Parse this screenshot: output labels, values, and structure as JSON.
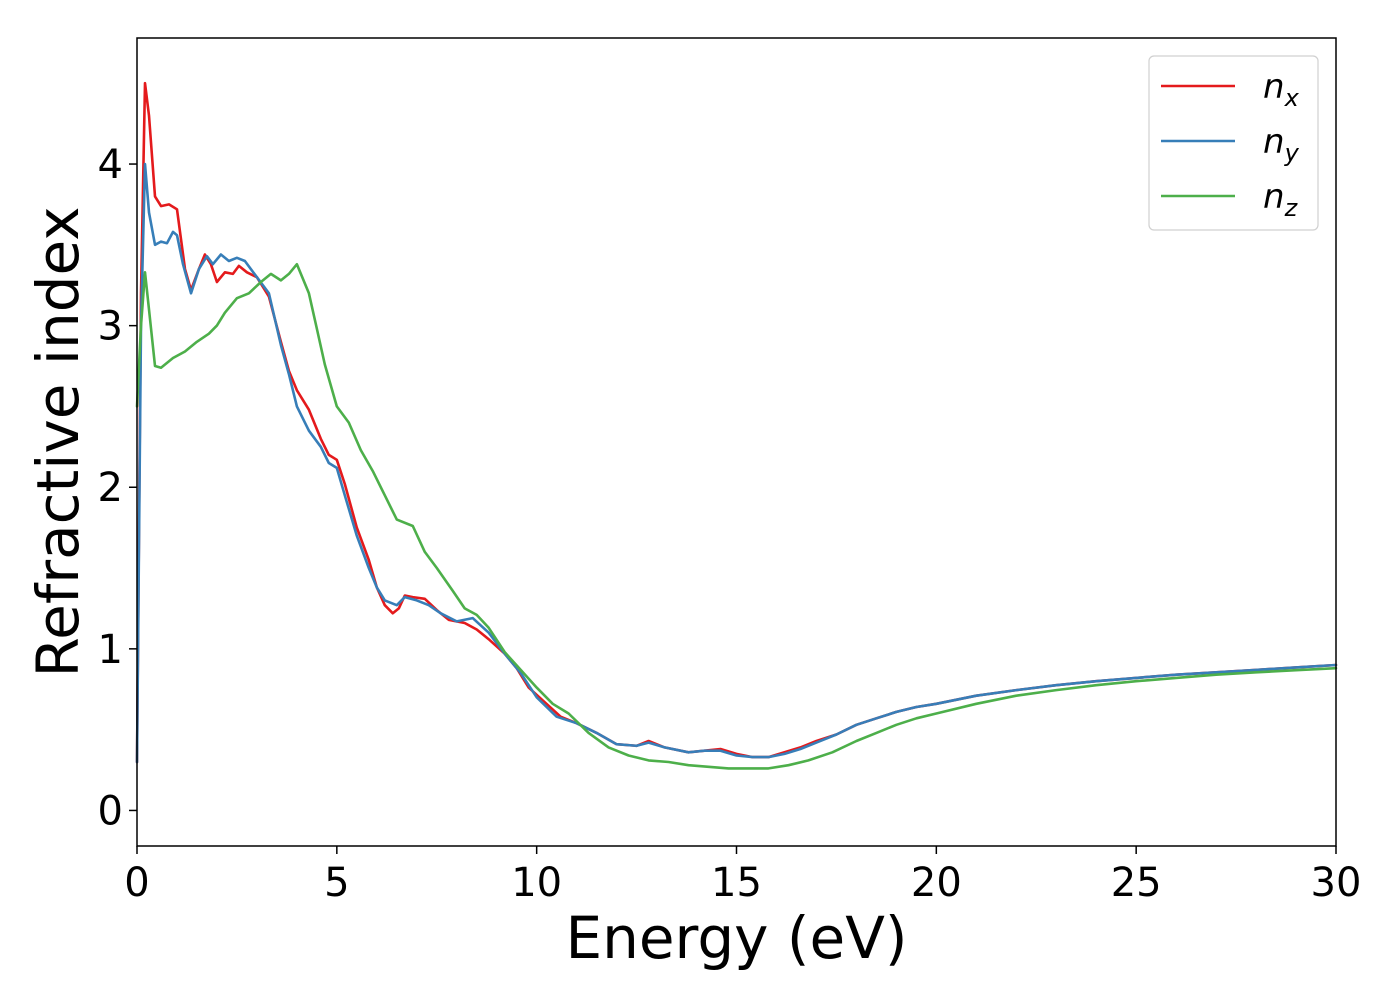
{
  "chart_data": {
    "type": "line",
    "xlabel": "Energy (eV)",
    "ylabel": "Refractive index",
    "xlim": [
      0,
      30
    ],
    "ylim": [
      -0.22,
      4.78
    ],
    "xticks": [
      0,
      5,
      10,
      15,
      20,
      25,
      30
    ],
    "yticks": [
      0,
      1,
      2,
      3,
      4
    ],
    "grid": false,
    "legend_position": "top-right",
    "series": [
      {
        "name": "n",
        "subscript": "x",
        "color": "#e41a1c",
        "points": [
          [
            0,
            0.3
          ],
          [
            0.1,
            3.2
          ],
          [
            0.2,
            4.5
          ],
          [
            0.3,
            4.3
          ],
          [
            0.45,
            3.8
          ],
          [
            0.6,
            3.74
          ],
          [
            0.8,
            3.75
          ],
          [
            1.0,
            3.72
          ],
          [
            1.2,
            3.35
          ],
          [
            1.35,
            3.22
          ],
          [
            1.55,
            3.35
          ],
          [
            1.7,
            3.44
          ],
          [
            1.85,
            3.38
          ],
          [
            2.0,
            3.27
          ],
          [
            2.2,
            3.33
          ],
          [
            2.4,
            3.32
          ],
          [
            2.55,
            3.37
          ],
          [
            2.75,
            3.33
          ],
          [
            3.0,
            3.3
          ],
          [
            3.3,
            3.18
          ],
          [
            3.6,
            2.9
          ],
          [
            3.8,
            2.72
          ],
          [
            4.0,
            2.6
          ],
          [
            4.3,
            2.48
          ],
          [
            4.6,
            2.3
          ],
          [
            4.8,
            2.2
          ],
          [
            5.0,
            2.17
          ],
          [
            5.2,
            2.02
          ],
          [
            5.5,
            1.75
          ],
          [
            5.8,
            1.55
          ],
          [
            6.0,
            1.38
          ],
          [
            6.2,
            1.27
          ],
          [
            6.4,
            1.22
          ],
          [
            6.55,
            1.25
          ],
          [
            6.7,
            1.33
          ],
          [
            6.9,
            1.32
          ],
          [
            7.2,
            1.31
          ],
          [
            7.5,
            1.24
          ],
          [
            7.8,
            1.18
          ],
          [
            8.2,
            1.16
          ],
          [
            8.5,
            1.12
          ],
          [
            8.8,
            1.06
          ],
          [
            9.2,
            0.97
          ],
          [
            9.5,
            0.88
          ],
          [
            9.8,
            0.76
          ],
          [
            10.2,
            0.67
          ],
          [
            10.6,
            0.58
          ],
          [
            11.0,
            0.54
          ],
          [
            11.5,
            0.48
          ],
          [
            12.0,
            0.41
          ],
          [
            12.5,
            0.4
          ],
          [
            12.8,
            0.43
          ],
          [
            13.2,
            0.39
          ],
          [
            13.8,
            0.36
          ],
          [
            14.2,
            0.37
          ],
          [
            14.6,
            0.38
          ],
          [
            15.0,
            0.35
          ],
          [
            15.4,
            0.33
          ],
          [
            15.8,
            0.33
          ],
          [
            16.2,
            0.36
          ],
          [
            16.6,
            0.39
          ],
          [
            17.0,
            0.43
          ],
          [
            17.5,
            0.47
          ],
          [
            18.0,
            0.53
          ],
          [
            18.5,
            0.57
          ],
          [
            19.0,
            0.61
          ],
          [
            19.5,
            0.64
          ],
          [
            20.0,
            0.66
          ],
          [
            21.0,
            0.71
          ],
          [
            22.0,
            0.745
          ],
          [
            23.0,
            0.775
          ],
          [
            24.0,
            0.8
          ],
          [
            25.0,
            0.82
          ],
          [
            26.0,
            0.84
          ],
          [
            27.0,
            0.855
          ],
          [
            28.0,
            0.87
          ],
          [
            29.0,
            0.885
          ],
          [
            30.0,
            0.9
          ]
        ]
      },
      {
        "name": "n",
        "subscript": "y",
        "color": "#377eb8",
        "points": [
          [
            0,
            0.3
          ],
          [
            0.1,
            3.0
          ],
          [
            0.2,
            4.0
          ],
          [
            0.3,
            3.7
          ],
          [
            0.45,
            3.5
          ],
          [
            0.6,
            3.52
          ],
          [
            0.75,
            3.51
          ],
          [
            0.9,
            3.58
          ],
          [
            1.0,
            3.56
          ],
          [
            1.15,
            3.38
          ],
          [
            1.35,
            3.2
          ],
          [
            1.55,
            3.35
          ],
          [
            1.75,
            3.43
          ],
          [
            1.9,
            3.38
          ],
          [
            2.1,
            3.44
          ],
          [
            2.3,
            3.4
          ],
          [
            2.5,
            3.42
          ],
          [
            2.7,
            3.4
          ],
          [
            3.0,
            3.3
          ],
          [
            3.3,
            3.2
          ],
          [
            3.6,
            2.88
          ],
          [
            3.8,
            2.7
          ],
          [
            4.0,
            2.5
          ],
          [
            4.3,
            2.35
          ],
          [
            4.6,
            2.25
          ],
          [
            4.8,
            2.15
          ],
          [
            5.0,
            2.12
          ],
          [
            5.2,
            1.95
          ],
          [
            5.5,
            1.7
          ],
          [
            5.8,
            1.5
          ],
          [
            6.0,
            1.38
          ],
          [
            6.2,
            1.3
          ],
          [
            6.5,
            1.27
          ],
          [
            6.7,
            1.32
          ],
          [
            7.0,
            1.3
          ],
          [
            7.3,
            1.27
          ],
          [
            7.6,
            1.22
          ],
          [
            8.0,
            1.17
          ],
          [
            8.4,
            1.19
          ],
          [
            8.8,
            1.1
          ],
          [
            9.2,
            0.97
          ],
          [
            9.6,
            0.85
          ],
          [
            10.0,
            0.7
          ],
          [
            10.5,
            0.58
          ],
          [
            11.0,
            0.54
          ],
          [
            11.5,
            0.48
          ],
          [
            12.0,
            0.41
          ],
          [
            12.5,
            0.4
          ],
          [
            12.8,
            0.42
          ],
          [
            13.2,
            0.39
          ],
          [
            13.8,
            0.36
          ],
          [
            14.2,
            0.37
          ],
          [
            14.6,
            0.37
          ],
          [
            15.0,
            0.34
          ],
          [
            15.4,
            0.33
          ],
          [
            15.8,
            0.33
          ],
          [
            16.2,
            0.35
          ],
          [
            16.6,
            0.38
          ],
          [
            17.0,
            0.42
          ],
          [
            17.5,
            0.47
          ],
          [
            18.0,
            0.53
          ],
          [
            18.5,
            0.57
          ],
          [
            19.0,
            0.61
          ],
          [
            19.5,
            0.64
          ],
          [
            20.0,
            0.66
          ],
          [
            21.0,
            0.71
          ],
          [
            22.0,
            0.745
          ],
          [
            23.0,
            0.775
          ],
          [
            24.0,
            0.8
          ],
          [
            25.0,
            0.82
          ],
          [
            26.0,
            0.84
          ],
          [
            27.0,
            0.855
          ],
          [
            28.0,
            0.87
          ],
          [
            29.0,
            0.885
          ],
          [
            30.0,
            0.9
          ]
        ]
      },
      {
        "name": "n",
        "subscript": "z",
        "color": "#4daf4a",
        "points": [
          [
            0,
            2.5
          ],
          [
            0.1,
            3.0
          ],
          [
            0.2,
            3.33
          ],
          [
            0.3,
            3.1
          ],
          [
            0.45,
            2.75
          ],
          [
            0.6,
            2.74
          ],
          [
            0.9,
            2.8
          ],
          [
            1.2,
            2.84
          ],
          [
            1.5,
            2.9
          ],
          [
            1.8,
            2.95
          ],
          [
            2.0,
            3.0
          ],
          [
            2.2,
            3.08
          ],
          [
            2.5,
            3.17
          ],
          [
            2.8,
            3.2
          ],
          [
            3.1,
            3.27
          ],
          [
            3.35,
            3.32
          ],
          [
            3.6,
            3.28
          ],
          [
            3.8,
            3.32
          ],
          [
            4.0,
            3.38
          ],
          [
            4.3,
            3.2
          ],
          [
            4.5,
            2.98
          ],
          [
            4.7,
            2.76
          ],
          [
            5.0,
            2.5
          ],
          [
            5.3,
            2.4
          ],
          [
            5.6,
            2.23
          ],
          [
            5.9,
            2.1
          ],
          [
            6.2,
            1.95
          ],
          [
            6.5,
            1.8
          ],
          [
            6.9,
            1.76
          ],
          [
            7.2,
            1.6
          ],
          [
            7.5,
            1.5
          ],
          [
            7.9,
            1.36
          ],
          [
            8.2,
            1.25
          ],
          [
            8.5,
            1.21
          ],
          [
            8.8,
            1.13
          ],
          [
            9.2,
            0.98
          ],
          [
            9.6,
            0.87
          ],
          [
            10.0,
            0.76
          ],
          [
            10.4,
            0.66
          ],
          [
            10.8,
            0.6
          ],
          [
            11.3,
            0.48
          ],
          [
            11.8,
            0.39
          ],
          [
            12.3,
            0.34
          ],
          [
            12.8,
            0.31
          ],
          [
            13.3,
            0.3
          ],
          [
            13.8,
            0.28
          ],
          [
            14.3,
            0.27
          ],
          [
            14.8,
            0.26
          ],
          [
            15.3,
            0.26
          ],
          [
            15.8,
            0.26
          ],
          [
            16.3,
            0.28
          ],
          [
            16.8,
            0.31
          ],
          [
            17.4,
            0.36
          ],
          [
            18.0,
            0.43
          ],
          [
            18.5,
            0.48
          ],
          [
            19.0,
            0.53
          ],
          [
            19.5,
            0.57
          ],
          [
            20.0,
            0.6
          ],
          [
            21.0,
            0.66
          ],
          [
            22.0,
            0.71
          ],
          [
            23.0,
            0.745
          ],
          [
            24.0,
            0.775
          ],
          [
            25.0,
            0.8
          ],
          [
            26.0,
            0.82
          ],
          [
            27.0,
            0.84
          ],
          [
            28.0,
            0.855
          ],
          [
            29.0,
            0.868
          ],
          [
            30.0,
            0.88
          ]
        ]
      }
    ]
  }
}
